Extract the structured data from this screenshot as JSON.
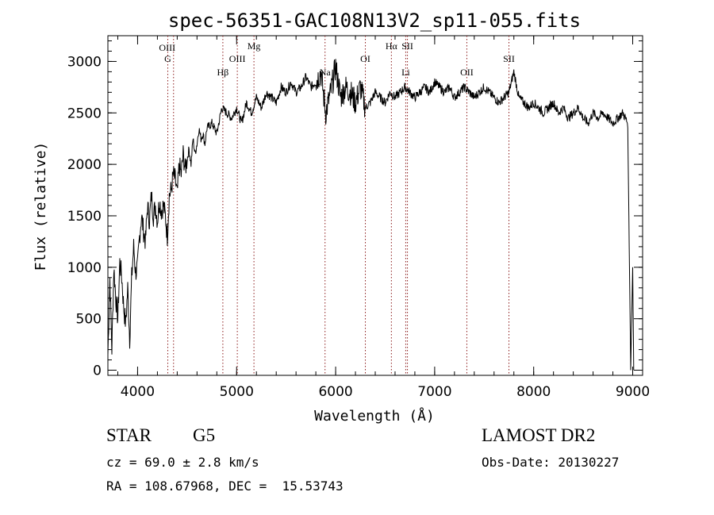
{
  "chart_data": {
    "type": "line",
    "title": "spec-56351-GAC108N13V2_sp11-055.fits",
    "xlabel": "Wavelength (Å)",
    "ylabel": "Flux (relative)",
    "xlim": [
      3700,
      9100
    ],
    "ylim": [
      -50,
      3250
    ],
    "x_ticks": [
      4000,
      5000,
      6000,
      7000,
      8000,
      9000
    ],
    "y_ticks": [
      0,
      500,
      1000,
      1500,
      2000,
      2500,
      3000
    ],
    "x_minor_step": 200,
    "y_minor_step": 100,
    "grid": false,
    "line_color": "#000000",
    "marker_color": "#8b1a1a",
    "series": [
      {
        "x": [
          3700,
          3720,
          3740,
          3760,
          3780,
          3800,
          3820,
          3840,
          3860,
          3880,
          3900,
          3920,
          3940,
          3960,
          3980,
          4000,
          4020,
          4040,
          4060,
          4080,
          4100,
          4120,
          4140,
          4160,
          4180,
          4200,
          4220,
          4240,
          4260,
          4280,
          4300,
          4320,
          4340,
          4360,
          4380,
          4400,
          4420,
          4440,
          4460,
          4480,
          4500,
          4520,
          4540,
          4560,
          4580,
          4600,
          4620,
          4640,
          4660,
          4680,
          4700,
          4750,
          4800,
          4850,
          4900,
          4950,
          5000,
          5050,
          5100,
          5150,
          5200,
          5250,
          5300,
          5350,
          5400,
          5450,
          5500,
          5550,
          5600,
          5650,
          5700,
          5750,
          5800,
          5850,
          5900,
          5950,
          6000,
          6050,
          6100,
          6150,
          6200,
          6250,
          6300,
          6350,
          6400,
          6450,
          6500,
          6550,
          6600,
          6650,
          6700,
          6750,
          6800,
          6850,
          6900,
          6950,
          7000,
          7050,
          7100,
          7150,
          7200,
          7250,
          7300,
          7350,
          7400,
          7450,
          7500,
          7550,
          7600,
          7650,
          7700,
          7750,
          7800,
          7850,
          7900,
          7950,
          8000,
          8050,
          8100,
          8150,
          8200,
          8250,
          8300,
          8350,
          8400,
          8450,
          8500,
          8550,
          8600,
          8650,
          8700,
          8750,
          8800,
          8850,
          8900,
          8950,
          8980,
          9000,
          9010
        ],
        "y": [
          150,
          900,
          200,
          1000,
          700,
          500,
          1050,
          900,
          600,
          450,
          800,
          300,
          900,
          1200,
          950,
          1000,
          1300,
          1500,
          1350,
          1250,
          1600,
          1450,
          1700,
          1500,
          1600,
          1450,
          1650,
          1550,
          1600,
          1500,
          1300,
          1700,
          1750,
          1900,
          1850,
          1700,
          2000,
          1900,
          2100,
          1950,
          2050,
          2150,
          2000,
          2250,
          2100,
          2200,
          2350,
          2250,
          2300,
          2200,
          2350,
          2400,
          2300,
          2550,
          2500,
          2450,
          2550,
          2400,
          2600,
          2500,
          2650,
          2550,
          2700,
          2650,
          2600,
          2750,
          2700,
          2800,
          2700,
          2750,
          2850,
          2750,
          2800,
          2900,
          2500,
          2700,
          2950,
          2650,
          2750,
          2700,
          2600,
          2750,
          2550,
          2600,
          2700,
          2650,
          2600,
          2700,
          2650,
          2700,
          2750,
          2700,
          2650,
          2700,
          2750,
          2700,
          2800,
          2750,
          2700,
          2750,
          2650,
          2700,
          2750,
          2700,
          2650,
          2700,
          2750,
          2700,
          2650,
          2600,
          2650,
          2700,
          2900,
          2650,
          2600,
          2550,
          2600,
          2550,
          2500,
          2550,
          2600,
          2500,
          2550,
          2450,
          2500,
          2550,
          2450,
          2400,
          2500,
          2450,
          2500,
          2450,
          2400,
          2450,
          2500,
          2400,
          0,
          1000,
          0
        ]
      }
    ],
    "lines": [
      {
        "x": 4305,
        "label": "G"
      },
      {
        "x": 4363,
        "label": "OIII"
      },
      {
        "x": 4861,
        "label": "Hβ"
      },
      {
        "x": 5007,
        "label": "OIII"
      },
      {
        "x": 5175,
        "label": "Mg"
      },
      {
        "x": 5893,
        "label": "Na"
      },
      {
        "x": 6300,
        "label": "OI"
      },
      {
        "x": 6563,
        "label": "Hα"
      },
      {
        "x": 6708,
        "label": "Li"
      },
      {
        "x": 6725,
        "label": "SII"
      },
      {
        "x": 7325,
        "label": "OII"
      },
      {
        "x": 7750,
        "label": "SII"
      }
    ]
  },
  "info": {
    "class": "STAR",
    "subclass": "G5",
    "survey": "LAMOST DR2",
    "cz": "cz = 69.0 ± 2.8 km/s",
    "obsdate": "Obs-Date: 20130227",
    "radec": "RA = 108.67968, DEC =  15.53743"
  }
}
